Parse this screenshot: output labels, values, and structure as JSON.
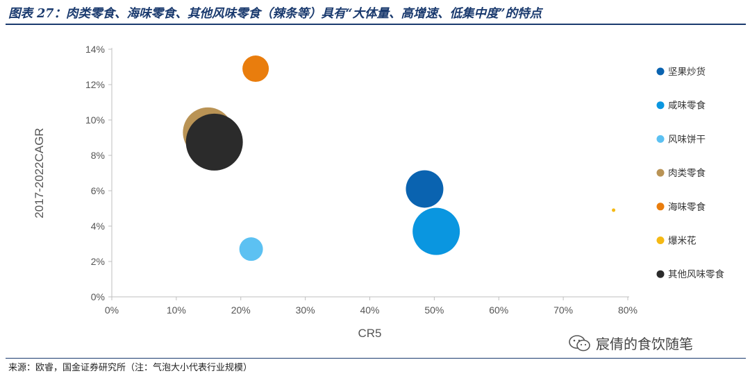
{
  "header": {
    "title": "图表 27：肉类零食、海味零食、其他风味零食（辣条等）具有“大体量、高增速、低集中度”的特点"
  },
  "footer": {
    "source": "来源：欧睿，国金证券研究所（注：气泡大小代表行业规模）",
    "watermark": "宸倩的食饮随笔"
  },
  "chart_data": {
    "type": "scatter",
    "title": "",
    "xlabel": "CR5",
    "ylabel": "2017-2022CAGR",
    "xlim": [
      0,
      80
    ],
    "ylim": [
      0,
      14
    ],
    "xticks": [
      "0%",
      "10%",
      "20%",
      "30%",
      "40%",
      "50%",
      "60%",
      "70%",
      "80%"
    ],
    "yticks": [
      "0%",
      "2%",
      "4%",
      "6%",
      "8%",
      "10%",
      "12%",
      "14%"
    ],
    "legend_position": "right",
    "grid": false,
    "series": [
      {
        "name": "坚果炒货",
        "x": 48.5,
        "y": 6.1,
        "size": 27,
        "color": "#0a63b0"
      },
      {
        "name": "咸味零食",
        "x": 50.3,
        "y": 3.7,
        "size": 34,
        "color": "#0a96e0"
      },
      {
        "name": "风味饼干",
        "x": 21.6,
        "y": 2.7,
        "size": 17,
        "color": "#5cc1f2"
      },
      {
        "name": "肉类零食",
        "x": 14.9,
        "y": 9.3,
        "size": 36,
        "color": "#b99355"
      },
      {
        "name": "海味零食",
        "x": 22.3,
        "y": 12.9,
        "size": 19,
        "color": "#e97d0d"
      },
      {
        "name": "爆米花",
        "x": 77.8,
        "y": 4.9,
        "size": 2.5,
        "color": "#f5b914"
      },
      {
        "name": "其他风味零食",
        "x": 15.9,
        "y": 8.75,
        "size": 41,
        "color": "#2b2b2b"
      }
    ]
  }
}
